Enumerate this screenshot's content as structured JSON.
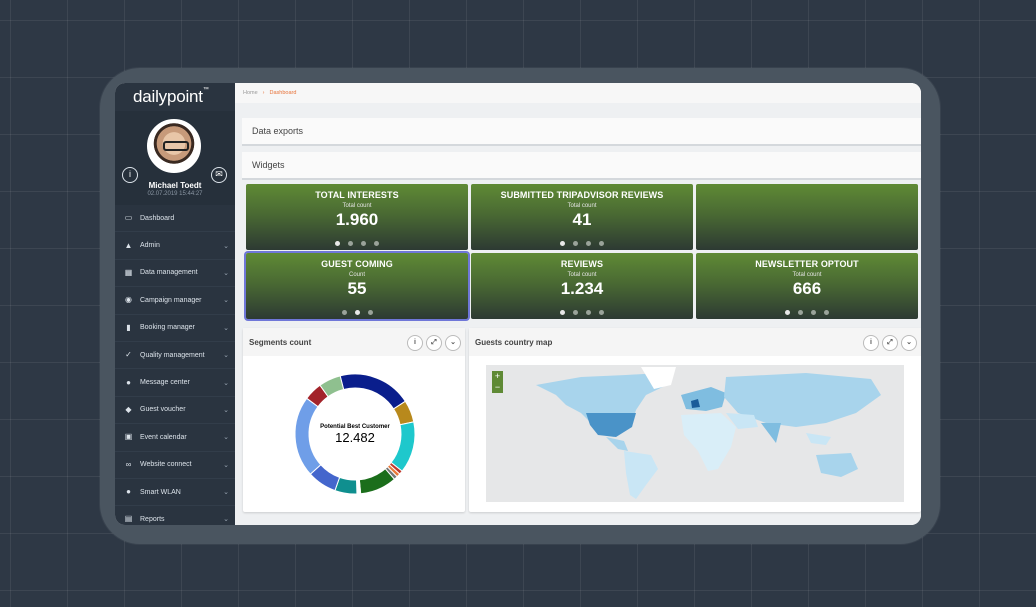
{
  "sidebar": {
    "logo": "dailypoint",
    "logo_tm": "™",
    "user_name": "Michael Toedt",
    "user_time": "02.07.2019 15:44:27",
    "info_icon": "i",
    "mail_icon": "✉",
    "items": [
      {
        "label": "Dashboard",
        "icon": "monitor-icon"
      },
      {
        "label": "Admin",
        "icon": "lock-icon"
      },
      {
        "label": "Data management",
        "icon": "table-icon"
      },
      {
        "label": "Campaign manager",
        "icon": "target-icon"
      },
      {
        "label": "Booking manager",
        "icon": "book-icon"
      },
      {
        "label": "Quality management",
        "icon": "check-circle-icon"
      },
      {
        "label": "Message center",
        "icon": "chat-icon"
      },
      {
        "label": "Guest voucher",
        "icon": "gift-icon"
      },
      {
        "label": "Event calendar",
        "icon": "calendar-icon"
      },
      {
        "label": "Website connect",
        "icon": "link-icon"
      },
      {
        "label": "Smart WLAN",
        "icon": "globe-icon"
      },
      {
        "label": "Reports",
        "icon": "chart-icon"
      }
    ]
  },
  "breadcrumb": {
    "home": "Home",
    "separator": "›",
    "current": "Dashboard"
  },
  "panels": {
    "data_exports": "Data exports",
    "widgets": "Widgets"
  },
  "tiles": [
    {
      "title": "TOTAL INTERESTS",
      "sub": "Total count",
      "value": "1.960",
      "dots": 4,
      "active_dot": 0
    },
    {
      "title": "SUBMITTED TRIPADVISOR REVIEWS",
      "sub": "Total count",
      "value": "41",
      "dots": 4,
      "active_dot": 0
    },
    {
      "title": "",
      "sub": "",
      "value": "",
      "dots": 0,
      "active_dot": -1
    },
    {
      "title": "GUEST COMING",
      "sub": "Count",
      "value": "55",
      "dots": 3,
      "active_dot": 1
    },
    {
      "title": "REVIEWS",
      "sub": "Total count",
      "value": "1.234",
      "dots": 4,
      "active_dot": 0
    },
    {
      "title": "NEWSLETTER OPTOUT",
      "sub": "Total count",
      "value": "666",
      "dots": 4,
      "active_dot": 0
    }
  ],
  "segments": {
    "title": "Segments count",
    "center_label": "Potential Best Customer",
    "center_value": "12.482",
    "slices": [
      {
        "value": 20,
        "color": "#0a1e8c"
      },
      {
        "value": 6,
        "color": "#b8891c"
      },
      {
        "value": 14,
        "color": "#1ec8cc"
      },
      {
        "value": 1,
        "color": "#c0392b"
      },
      {
        "value": 1,
        "color": "#e87a3a"
      },
      {
        "value": 1,
        "color": "#777777"
      },
      {
        "value": 10,
        "color": "#1b6e1b"
      },
      {
        "value": 1,
        "color": "#ffffff"
      },
      {
        "value": 6,
        "color": "#0f8f8f"
      },
      {
        "value": 8,
        "color": "#4466cc"
      },
      {
        "value": 22,
        "color": "#6f9ee8"
      },
      {
        "value": 5,
        "color": "#a3232a"
      },
      {
        "value": 6,
        "color": "#8fc08f"
      }
    ]
  },
  "map": {
    "title": "Guests country map",
    "zoom_in": "+",
    "zoom_out": "−"
  },
  "widget_buttons": {
    "info": "i",
    "expand": "⤢",
    "collapse": "⌄"
  }
}
